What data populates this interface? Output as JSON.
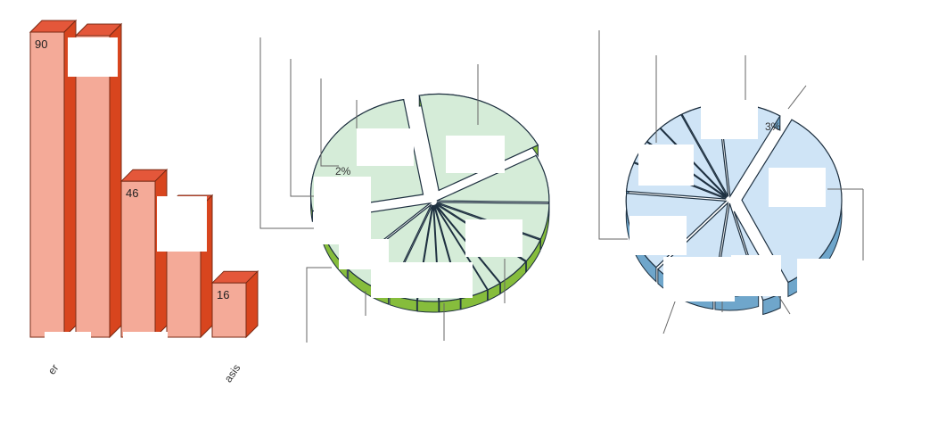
{
  "colors": {
    "bar_face": "#f4aa98",
    "bar_side": "#d8451e",
    "bar_top": "#e4573a",
    "green_face": "#d5ecd8",
    "green_side": "#86bd3c",
    "blue_face": "#cfe4f6",
    "blue_side": "#6fa6cb"
  },
  "chart_data": [
    {
      "type": "bar",
      "categories": [
        "er",
        "",
        "",
        "",
        "asis"
      ],
      "values": [
        90,
        null,
        46,
        null,
        16
      ],
      "value_labels": [
        "90",
        "",
        "46",
        "",
        "16"
      ]
    },
    {
      "type": "pie",
      "annotations": [
        "2%"
      ]
    },
    {
      "type": "pie",
      "annotations": [
        "3%"
      ]
    }
  ]
}
